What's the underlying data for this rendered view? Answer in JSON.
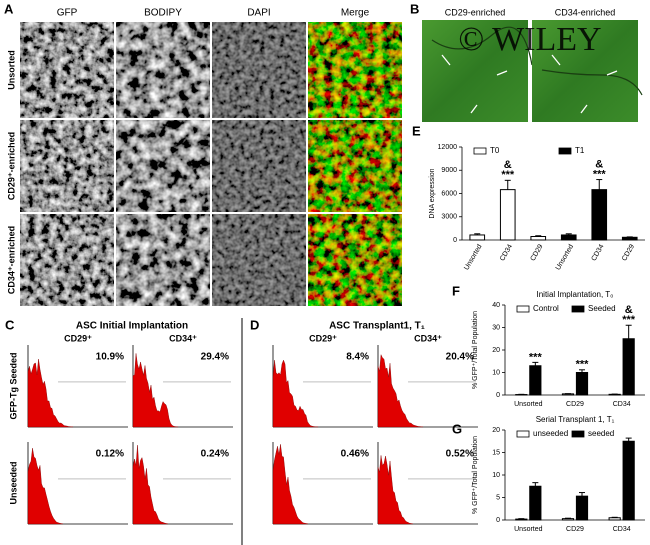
{
  "panel_a": {
    "label": "A",
    "columns": [
      "GFP",
      "BODIPY",
      "DAPI",
      "Merge"
    ],
    "rows": [
      "Unsorted",
      "CD29⁺-enriched",
      "CD34⁺-enriched"
    ]
  },
  "panel_b": {
    "label": "B",
    "images": [
      "CD29-enriched",
      "CD34-enriched"
    ],
    "watermark": "© WILEY"
  },
  "panel_c": {
    "label": "C",
    "title": "ASC Initial Implantation",
    "columns": [
      "CD29⁺",
      "CD34⁺"
    ],
    "rows": [
      "GFP-Tg Seeded",
      "Unseeded"
    ],
    "percentages": [
      [
        "10.9%",
        "29.4%"
      ],
      [
        "0.12%",
        "0.24%"
      ]
    ]
  },
  "panel_d": {
    "label": "D",
    "title": "ASC Transplant1, T₁",
    "columns": [
      "CD29⁺",
      "CD34⁺"
    ],
    "percentages": [
      [
        "8.4%",
        "20.4%"
      ],
      [
        "0.46%",
        "0.52%"
      ]
    ]
  },
  "chart_data": [
    {
      "type": "bar",
      "label": "E",
      "ylabel": "DNA expression",
      "categories": [
        "Unsorted",
        "CD34",
        "CD29",
        "Unsorted",
        "CD34",
        "CD29"
      ],
      "series": [
        {
          "name": "T0",
          "color": "#ffffff",
          "values": [
            650,
            6500,
            450,
            null,
            null,
            null
          ],
          "errors": [
            150,
            1200,
            100,
            null,
            null,
            null
          ]
        },
        {
          "name": "T1",
          "color": "#000000",
          "values": [
            null,
            null,
            null,
            650,
            6500,
            350
          ],
          "errors": [
            null,
            null,
            null,
            150,
            1300,
            50
          ]
        }
      ],
      "annotations": [
        [],
        [
          "&",
          "***"
        ],
        [],
        [],
        [
          "&",
          "***"
        ],
        []
      ],
      "ylim": [
        0,
        12000
      ],
      "yticks": [
        0,
        3000,
        6000,
        9000,
        12000
      ]
    },
    {
      "type": "bar",
      "label": "F",
      "title": "Initial Implantation, T₀",
      "ylabel": "% GFP⁺/Total Population",
      "categories": [
        "Unsorted",
        "CD29",
        "CD34"
      ],
      "series": [
        {
          "name": "Control",
          "color": "#ffffff",
          "values": [
            0.2,
            0.5,
            0.3
          ],
          "errors": [
            0.1,
            0.1,
            0.1
          ]
        },
        {
          "name": "Seeded",
          "color": "#000000",
          "values": [
            13,
            10,
            25
          ],
          "errors": [
            1.5,
            1.2,
            6
          ]
        }
      ],
      "annotations": [
        [
          "***"
        ],
        [
          "***"
        ],
        [
          "&",
          "***"
        ]
      ],
      "ylim": [
        0,
        40
      ],
      "yticks": [
        0,
        10,
        20,
        30,
        40
      ]
    },
    {
      "type": "bar",
      "label": "G",
      "title": "Serial Transplant 1, T₁",
      "ylabel": "% GFP⁺/Total Population",
      "categories": [
        "Unsorted",
        "CD29",
        "CD34"
      ],
      "series": [
        {
          "name": "unseeded",
          "color": "#ffffff",
          "values": [
            0.2,
            0.3,
            0.5
          ],
          "errors": [
            0.1,
            0.1,
            0.1
          ]
        },
        {
          "name": "seeded",
          "color": "#000000",
          "values": [
            7.5,
            5.3,
            17.5
          ],
          "errors": [
            0.8,
            0.8,
            0.7
          ]
        }
      ],
      "annotations": [
        [],
        [],
        []
      ],
      "ylim": [
        0,
        20
      ],
      "yticks": [
        0,
        5,
        10,
        15,
        20
      ]
    }
  ]
}
